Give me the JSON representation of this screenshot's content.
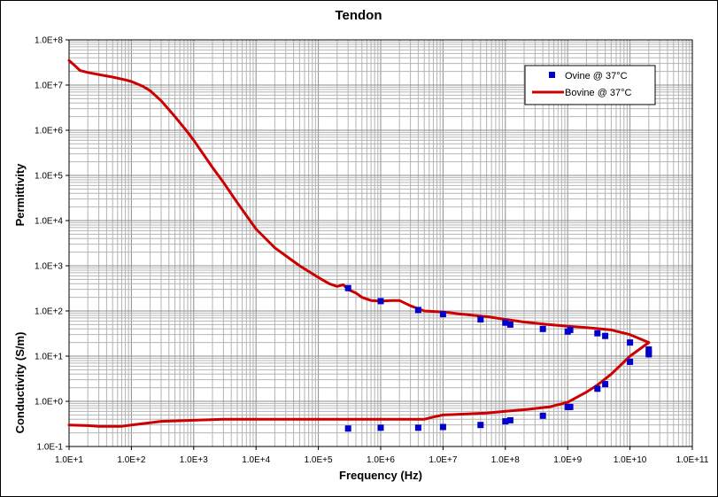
{
  "chart_data": {
    "type": "scatter",
    "title": "Tendon",
    "xlabel": "Frequency (Hz)",
    "ylabel_upper": "Permittivity",
    "ylabel_lower": "Conductivity (S/m)",
    "x_scale": "log",
    "y_scale": "log",
    "xlim": [
      10,
      100000000000
    ],
    "ylim": [
      0.1,
      100000000
    ],
    "x_tick_labels": [
      "1.0E+1",
      "1.0E+2",
      "1.0E+3",
      "1.0E+4",
      "1.0E+5",
      "1.0E+6",
      "1.0E+7",
      "1.0E+8",
      "1.0E+9",
      "1.0E+10",
      "1.0E+11"
    ],
    "y_tick_labels": [
      "1.0E-1",
      "1.0E+0",
      "1.0E+1",
      "1.0E+2",
      "1.0E+3",
      "1.0E+4",
      "1.0E+5",
      "1.0E+6",
      "1.0E+7",
      "1.0E+8"
    ],
    "grid": true,
    "legend_position": "top-right",
    "colors": {
      "ovine": "#0000cc",
      "bovine": "#cc0000",
      "grid": "#b4b4b4"
    },
    "series": [
      {
        "name": "Ovine @ 37°C",
        "kind": "markers",
        "points": [
          [
            300000,
            320
          ],
          [
            1000000,
            165
          ],
          [
            4000000,
            105
          ],
          [
            10000000,
            85
          ],
          [
            40000000,
            65
          ],
          [
            100000000,
            55
          ],
          [
            120000000,
            50
          ],
          [
            400000000,
            40
          ],
          [
            1000000000,
            35
          ],
          [
            1100000000,
            38
          ],
          [
            3000000000,
            32
          ],
          [
            4000000000,
            28
          ],
          [
            10000000000,
            20
          ],
          [
            20000000000,
            14
          ],
          [
            20000000000,
            12
          ],
          [
            300000,
            0.25
          ],
          [
            1000000,
            0.26
          ],
          [
            4000000,
            0.26
          ],
          [
            10000000,
            0.27
          ],
          [
            40000000,
            0.3
          ],
          [
            100000000,
            0.36
          ],
          [
            120000000,
            0.38
          ],
          [
            400000000,
            0.48
          ],
          [
            1000000000,
            0.75
          ],
          [
            1100000000,
            0.75
          ],
          [
            3000000000,
            1.9
          ],
          [
            4000000000,
            2.4
          ],
          [
            10000000000,
            7.5
          ],
          [
            20000000000,
            11
          ]
        ]
      },
      {
        "name": "Bovine @ 37°C",
        "kind": "line",
        "segments": [
          [
            [
              10,
              35000000
            ],
            [
              12,
              28000000
            ],
            [
              15,
              21000000
            ],
            [
              20,
              19000000
            ],
            [
              30,
              17000000
            ],
            [
              50,
              15000000
            ],
            [
              80,
              13000000
            ],
            [
              100,
              12000000
            ],
            [
              150,
              9500000
            ],
            [
              200,
              7500000
            ],
            [
              300,
              4500000
            ],
            [
              500,
              2000000
            ],
            [
              800,
              900000
            ],
            [
              1000,
              600000
            ],
            [
              2000,
              150000
            ],
            [
              3000,
              70000
            ],
            [
              5000,
              25000
            ],
            [
              8000,
              10000
            ],
            [
              10000,
              6500
            ],
            [
              20000,
              2500
            ],
            [
              50000,
              1000
            ],
            [
              100000,
              550
            ],
            [
              150000,
              400
            ],
            [
              200000,
              350
            ],
            [
              250000,
              380
            ],
            [
              300000,
              300
            ],
            [
              400000,
              250
            ],
            [
              500000,
              200
            ],
            [
              700000,
              170
            ],
            [
              1000000,
              165
            ],
            [
              1500000,
              170
            ],
            [
              2000000,
              170
            ],
            [
              3000000,
              130
            ],
            [
              5000000,
              100
            ],
            [
              10000000,
              95
            ],
            [
              20000000,
              85
            ],
            [
              50000000,
              75
            ],
            [
              100000000,
              65
            ],
            [
              200000000,
              57
            ],
            [
              500000000,
              50
            ],
            [
              1000000000,
              46
            ],
            [
              2000000000,
              43
            ],
            [
              5000000000,
              38
            ],
            [
              10000000000,
              30
            ],
            [
              20000000000,
              20
            ]
          ],
          [
            [
              20000000000,
              20
            ],
            [
              15000000000,
              15
            ],
            [
              10000000000,
              10
            ],
            [
              5000000000,
              4
            ],
            [
              3000000000,
              2.3
            ],
            [
              2000000000,
              1.6
            ],
            [
              1000000000,
              0.95
            ],
            [
              500000000,
              0.75
            ],
            [
              200000000,
              0.65
            ],
            [
              100000000,
              0.6
            ],
            [
              50000000,
              0.55
            ],
            [
              20000000,
              0.52
            ],
            [
              10000000,
              0.5
            ],
            [
              7000000,
              0.45
            ],
            [
              5000000,
              0.4
            ],
            [
              100000,
              0.4
            ],
            [
              3000,
              0.4
            ],
            [
              1000,
              0.38
            ],
            [
              300,
              0.36
            ],
            [
              150,
              0.32
            ],
            [
              100,
              0.3
            ],
            [
              70,
              0.28
            ],
            [
              30,
              0.28
            ],
            [
              20,
              0.29
            ],
            [
              10,
              0.3
            ]
          ]
        ]
      }
    ]
  }
}
